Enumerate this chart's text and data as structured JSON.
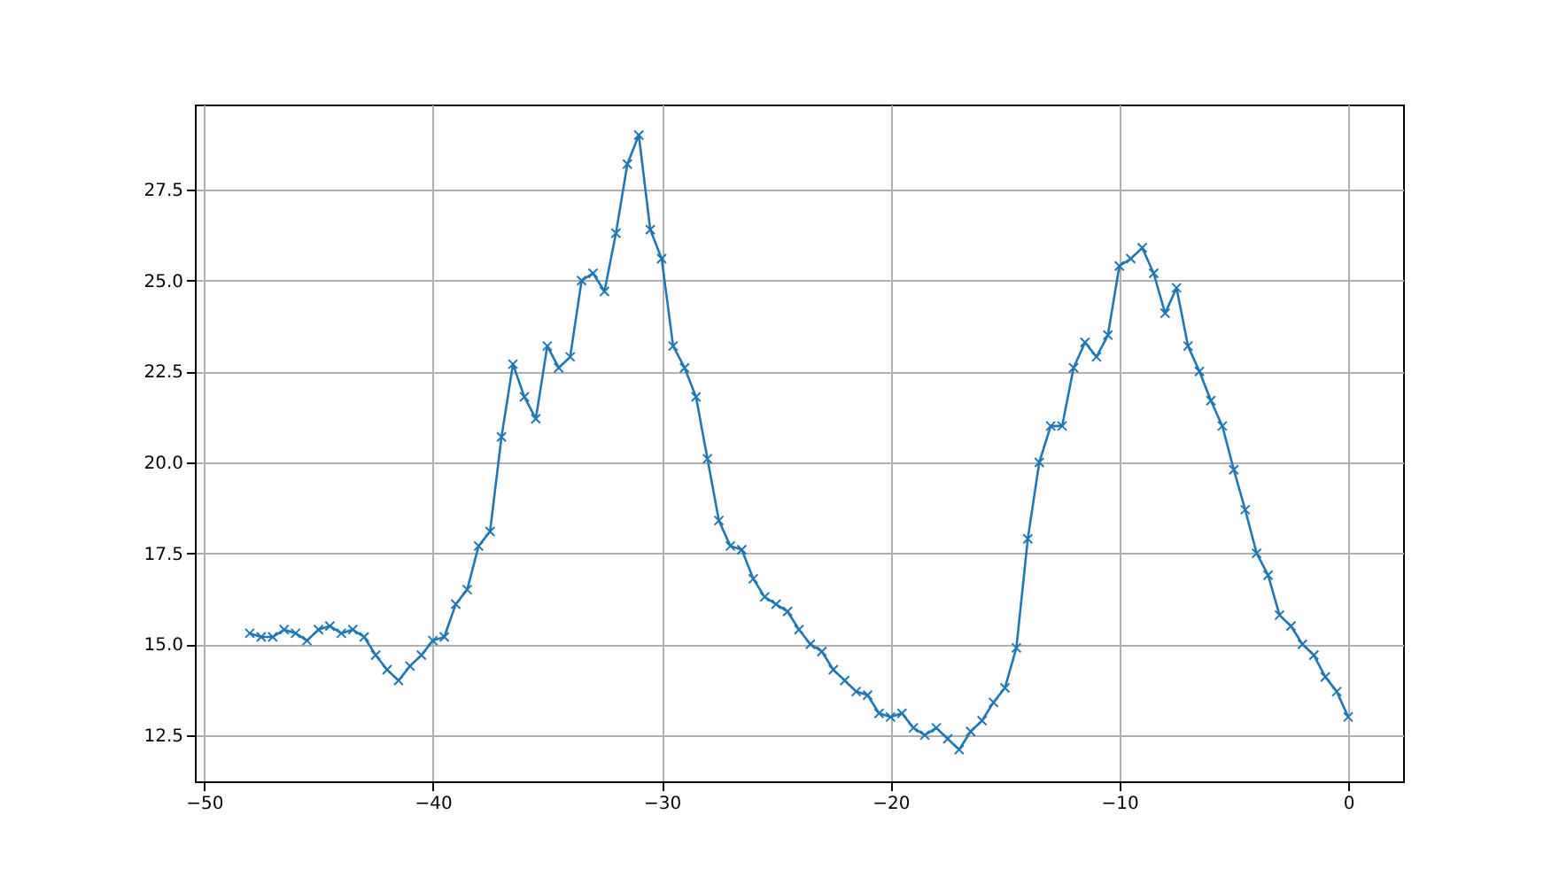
{
  "chart_data": {
    "type": "line",
    "marker": "cross",
    "line_style": "solid",
    "grid": true,
    "x": [
      -48,
      -47.5,
      -47,
      -46.5,
      -46,
      -45.5,
      -45,
      -44.5,
      -44,
      -43.5,
      -43,
      -42.5,
      -42,
      -41.5,
      -41,
      -40.5,
      -40,
      -39.5,
      -39,
      -38.5,
      -38,
      -37.5,
      -37,
      -36.5,
      -36,
      -35.5,
      -35,
      -34.5,
      -34,
      -33.5,
      -33,
      -32.5,
      -32,
      -31.5,
      -31,
      -30.5,
      -30,
      -29.5,
      -29,
      -28.5,
      -28,
      -27.5,
      -27,
      -26.5,
      -26,
      -25.5,
      -25,
      -24.5,
      -24,
      -23.5,
      -23,
      -22.5,
      -22,
      -21.5,
      -21,
      -20.5,
      -20,
      -19.5,
      -19,
      -18.5,
      -18,
      -17.5,
      -17,
      -16.5,
      -16,
      -15.5,
      -15,
      -14.5,
      -14,
      -13.5,
      -13,
      -12.5,
      -12,
      -11.5,
      -11,
      -10.5,
      -10,
      -9.5,
      -9,
      -8.5,
      -8,
      -7.5,
      -7,
      -6.5,
      -6,
      -5.5,
      -5,
      -4.5,
      -4,
      -3.5,
      -3,
      -2.5,
      -2,
      -1.5,
      -1,
      -0.5,
      0
    ],
    "series": [
      {
        "color": "#1f77b4",
        "values": [
          15.3,
          15.2,
          15.2,
          15.4,
          15.3,
          15.1,
          15.4,
          15.5,
          15.3,
          15.4,
          15.2,
          14.7,
          14.3,
          14.0,
          14.4,
          14.7,
          15.1,
          15.2,
          16.1,
          16.5,
          17.7,
          18.1,
          20.7,
          22.7,
          21.8,
          21.2,
          23.2,
          22.6,
          22.9,
          25.0,
          25.2,
          24.7,
          26.3,
          28.2,
          29.0,
          26.4,
          25.6,
          23.2,
          22.6,
          21.8,
          20.1,
          18.4,
          17.7,
          17.6,
          16.8,
          16.3,
          16.1,
          15.9,
          15.4,
          15.0,
          14.8,
          14.3,
          14.0,
          13.7,
          13.6,
          13.1,
          13.0,
          13.1,
          12.7,
          12.5,
          12.7,
          12.4,
          12.1,
          12.6,
          12.9,
          13.4,
          13.8,
          14.9,
          17.9,
          20.0,
          21.0,
          21.0,
          22.6,
          23.3,
          22.9,
          23.5,
          25.4,
          25.6,
          25.9,
          25.2,
          24.1,
          24.8,
          23.2,
          22.5,
          21.7,
          21.0,
          19.8,
          18.7,
          17.5,
          16.9,
          15.8,
          15.5,
          15.0,
          14.7,
          14.1,
          13.7,
          13.0
        ]
      }
    ],
    "xlim": [
      -50.4,
      2.4
    ],
    "xticks": [
      -50,
      -40,
      -30,
      -20,
      -10,
      0
    ],
    "ylim": [
      11.23,
      29.84
    ],
    "yticks": [
      {
        "value": 12.5,
        "label": "12.5"
      },
      {
        "value": 15,
        "label": "15.0"
      },
      {
        "value": 17.5,
        "label": "17.5"
      },
      {
        "value": 20,
        "label": "20.0"
      },
      {
        "value": 22.5,
        "label": "22.5"
      },
      {
        "value": 25,
        "label": "25.0"
      },
      {
        "value": 27.5,
        "label": "27.5"
      }
    ]
  }
}
